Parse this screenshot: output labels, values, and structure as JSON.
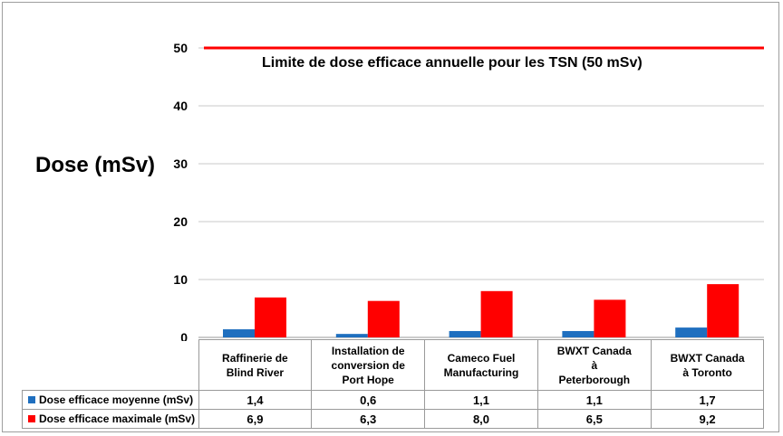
{
  "chart_data": {
    "type": "bar",
    "ylabel": "Dose (mSv)",
    "ylim": [
      0,
      55
    ],
    "yticks": [
      0,
      10,
      20,
      30,
      40,
      50
    ],
    "grid": true,
    "categories": [
      "Raffinerie de\nBlind River",
      "Installation de\nconversion de\nPort Hope",
      "Cameco Fuel\nManufacturing",
      "BWXT Canada\nà\nPeterborough",
      "BWXT Canada\nà Toronto"
    ],
    "series": [
      {
        "name": "Dose efficace moyenne (mSv)",
        "color": "#1f6fbf",
        "values": [
          1.4,
          0.6,
          1.1,
          1.1,
          1.7
        ],
        "labels": [
          "1,4",
          "0,6",
          "1,1",
          "1,1",
          "1,7"
        ]
      },
      {
        "name": "Dose efficace maximale (mSv)",
        "color": "#ff0000",
        "values": [
          6.9,
          6.3,
          8.0,
          6.5,
          9.2
        ],
        "labels": [
          "6,9",
          "6,3",
          "8,0",
          "6,5",
          "9,2"
        ]
      }
    ],
    "reference_line": {
      "value": 50,
      "color": "#ff0000",
      "label": "Limite de dose efficace annuelle pour les TSN  (50 mSv)"
    },
    "legend": "data table below chart"
  }
}
